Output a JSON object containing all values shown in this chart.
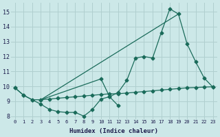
{
  "xlabel": "Humidex (Indice chaleur)",
  "bg_color": "#cce8e8",
  "grid_color": "#b0cfcf",
  "line_color": "#1a6b5a",
  "xlim": [
    -0.5,
    23.5
  ],
  "ylim": [
    7.8,
    15.6
  ],
  "yticks": [
    8,
    9,
    10,
    11,
    12,
    13,
    14,
    15
  ],
  "xticks": [
    0,
    1,
    2,
    3,
    4,
    5,
    6,
    7,
    8,
    9,
    10,
    11,
    12,
    13,
    14,
    15,
    16,
    17,
    18,
    19,
    20,
    21,
    22,
    23
  ],
  "line1_x": [
    0,
    1,
    2,
    3,
    4,
    5,
    6,
    7,
    8,
    9,
    10,
    11,
    12
  ],
  "line1_y": [
    9.9,
    9.4,
    9.1,
    8.8,
    8.45,
    8.3,
    8.25,
    8.25,
    8.0,
    8.45,
    9.15,
    9.3,
    8.7
  ],
  "line2_x": [
    0,
    1,
    2,
    3,
    4,
    5,
    6,
    7,
    8,
    9,
    10,
    11,
    12,
    13,
    14,
    15,
    16,
    17,
    18,
    19,
    20,
    21,
    22,
    23
  ],
  "line2_y": [
    9.9,
    9.4,
    9.1,
    9.1,
    9.15,
    9.2,
    9.25,
    9.3,
    9.35,
    9.4,
    9.45,
    9.5,
    9.5,
    9.55,
    9.6,
    9.65,
    9.7,
    9.75,
    9.8,
    9.85,
    9.9,
    9.92,
    9.95,
    9.97
  ],
  "line3_x": [
    3,
    10,
    11,
    12,
    13,
    14,
    15,
    16,
    17,
    18,
    19,
    20,
    21,
    22,
    23
  ],
  "line3_y": [
    9.1,
    10.5,
    9.3,
    9.6,
    10.4,
    11.9,
    12.0,
    11.9,
    13.6,
    15.2,
    14.85,
    12.85,
    11.65,
    10.55,
    9.95
  ]
}
